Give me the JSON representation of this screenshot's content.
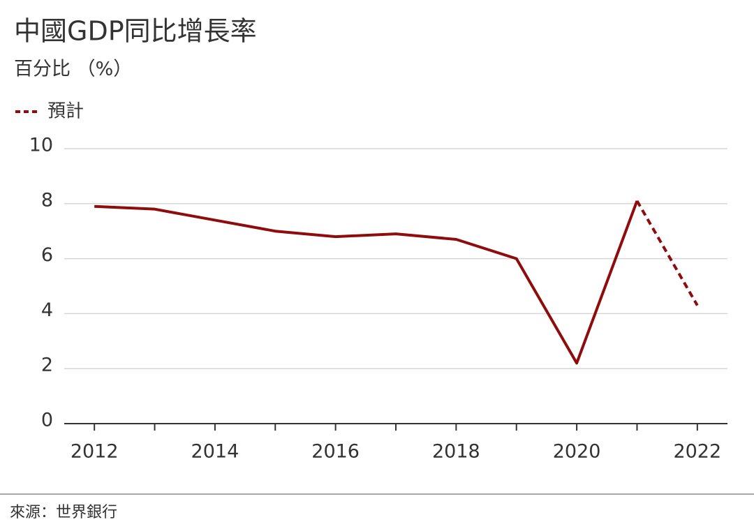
{
  "chart_data": {
    "type": "line",
    "title": "中國GDP同比增長率",
    "subtitle": "百分比 （%）",
    "source": "來源：世界銀行",
    "x": [
      2012,
      2013,
      2014,
      2015,
      2016,
      2017,
      2018,
      2019,
      2020,
      2021,
      2022
    ],
    "series": [
      {
        "color": "#8e0c0c",
        "dashed": false,
        "values": [
          7.9,
          7.8,
          7.4,
          7.0,
          6.8,
          6.9,
          6.7,
          6.0,
          2.2,
          8.1,
          null
        ]
      },
      {
        "name": "預計",
        "color": "#8e0c0c",
        "dashed": true,
        "values": [
          null,
          null,
          null,
          null,
          null,
          null,
          null,
          null,
          null,
          8.1,
          4.3
        ]
      }
    ],
    "xlim": [
      2011.5,
      2022.5
    ],
    "xticks": [
      2012,
      2014,
      2016,
      2018,
      2020,
      2022
    ],
    "xminorticks": [
      2013,
      2015,
      2017,
      2019,
      2021
    ],
    "ylim": [
      0,
      10
    ],
    "yticks": [
      0,
      2,
      4,
      6,
      8,
      10
    ],
    "grid": true,
    "legend": "top-left"
  }
}
